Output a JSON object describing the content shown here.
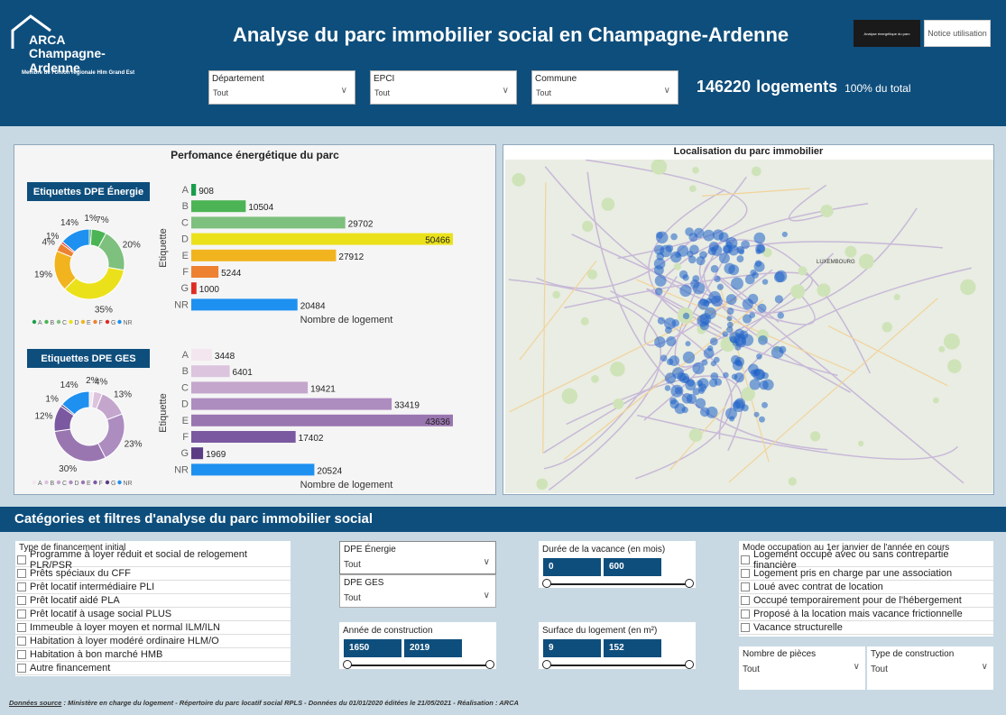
{
  "header": {
    "logo_line1": "ARCA",
    "logo_line2": "Champagne-Ardenne",
    "logo_line3": "Membre de l'Union régionale Hlm Grand Est",
    "title": "Analyse du parc immobilier social en Champagne-Ardenne",
    "btn_dark": "Analyse énergétique du parc",
    "btn_light": "Notice utilisation"
  },
  "slicers": [
    {
      "label": "Département",
      "value": "Tout"
    },
    {
      "label": "EPCI",
      "value": "Tout"
    },
    {
      "label": "Commune",
      "value": "Tout"
    }
  ],
  "kpi": {
    "value": "146220",
    "unit": "logements",
    "pct": "100% du total"
  },
  "energy_panel": {
    "title": "Perfomance énergétique du parc",
    "dpe_energie_label": "Etiquettes DPE Énergie",
    "dpe_ges_label": "Etiquettes DPE GES",
    "yaxis": "Etiquette",
    "xaxis": "Nombre de logement"
  },
  "map_panel": {
    "title": "Localisation du parc immobilier",
    "city": "LUXEMBOURG"
  },
  "chart_data": [
    {
      "type": "bar",
      "title": "Etiquettes DPE Énergie",
      "categories": [
        "A",
        "B",
        "C",
        "D",
        "E",
        "F",
        "G",
        "NR"
      ],
      "values": [
        908,
        10504,
        29702,
        50466,
        27912,
        5244,
        1000,
        20484
      ],
      "colors": [
        "#1a9e4a",
        "#4cb455",
        "#7ec07e",
        "#ebe11b",
        "#f2b41e",
        "#ed8131",
        "#e02b22",
        "#1e90f0"
      ],
      "xlabel": "Nombre de logement",
      "ylabel": "Etiquette"
    },
    {
      "type": "pie",
      "title": "Etiquettes DPE Énergie",
      "categories": [
        "A",
        "B",
        "C",
        "D",
        "E",
        "F",
        "G",
        "NR"
      ],
      "values": [
        1,
        7,
        20,
        35,
        19,
        4,
        1,
        14
      ],
      "labels": [
        "1%",
        "7%",
        "20%",
        "35%",
        "19%",
        "4%",
        "1%",
        "14%"
      ],
      "colors": [
        "#1a9e4a",
        "#4cb455",
        "#7ec07e",
        "#ebe11b",
        "#f2b41e",
        "#ed8131",
        "#e02b22",
        "#1e90f0"
      ]
    },
    {
      "type": "bar",
      "title": "Etiquettes DPE GES",
      "categories": [
        "A",
        "B",
        "C",
        "D",
        "E",
        "F",
        "G",
        "NR"
      ],
      "values": [
        3448,
        6401,
        19421,
        33419,
        43636,
        17402,
        1969,
        20524
      ],
      "colors": [
        "#f3e6ef",
        "#dcc3de",
        "#c4a6cd",
        "#ad8cc0",
        "#9a76b1",
        "#7b59a0",
        "#5b3d84",
        "#1e90f0"
      ],
      "xlabel": "Nombre de logement",
      "ylabel": "Etiquette"
    },
    {
      "type": "pie",
      "title": "Etiquettes DPE GES",
      "categories": [
        "A",
        "B",
        "C",
        "D",
        "E",
        "F",
        "G",
        "NR"
      ],
      "values": [
        2,
        4,
        13,
        23,
        30,
        12,
        1,
        14
      ],
      "labels": [
        "2%",
        "4%",
        "13%",
        "23%",
        "30%",
        "12%",
        "1%",
        "14%"
      ],
      "colors": [
        "#f3e6ef",
        "#dcc3de",
        "#c4a6cd",
        "#ad8cc0",
        "#9a76b1",
        "#7b59a0",
        "#5b3d84",
        "#1e90f0"
      ]
    }
  ],
  "section": {
    "title": "Catégories et filtres d'analyse du parc immobilier social"
  },
  "financement": {
    "title": "Type de financement initial",
    "items": [
      "Programme à loyer réduit et social de relogement PLR/PSR",
      "Prêts spéciaux du CFF",
      "Prêt locatif intermédiaire PLI",
      "Prêt locatif aidé PLA",
      "Prêt locatif à usage social PLUS",
      "Immeuble à loyer moyen et normal ILM/ILN",
      "Habitation à loyer modéré ordinaire HLM/O",
      "Habitation à bon marché HMB",
      "Autre financement"
    ]
  },
  "dpe_filters": [
    {
      "label": "DPE Énergie",
      "value": "Tout"
    },
    {
      "label": "DPE GES",
      "value": "Tout"
    }
  ],
  "annee": {
    "title": "Année de construction",
    "min": "1650",
    "max": "2019"
  },
  "vacance": {
    "title": "Durée de la vacance (en mois)",
    "min": "0",
    "max": "600"
  },
  "surface": {
    "title": "Surface du logement (en m²)",
    "min": "9",
    "max": "152"
  },
  "occupation": {
    "title": "Mode occupation au 1er janvier de l'année en cours",
    "items": [
      "Logement occupé avec ou sans contrepartie financière",
      "Logement pris en charge par une association",
      "Loué avec contrat de location",
      "Occupé temporairement pour de l'hébergement",
      "Proposé à la location mais vacance frictionnelle",
      "Vacance structurelle"
    ]
  },
  "pieces": {
    "label": "Nombre de pièces",
    "value": "Tout"
  },
  "construction": {
    "label": "Type de construction",
    "value": "Tout"
  },
  "footer": {
    "source_label": "Données source",
    "text": " : Ministère en charge du logement - Répertoire du parc locatif social RPLS - Données du 01/01/2020 éditées le 21/05/2021 - Réalisation : ARCA"
  }
}
